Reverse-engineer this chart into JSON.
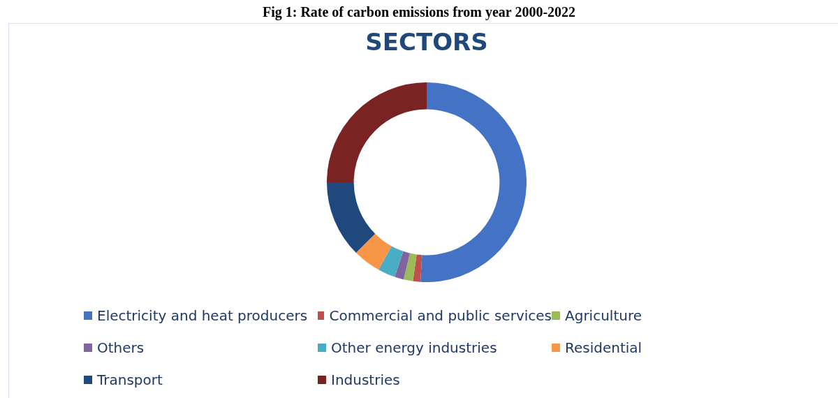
{
  "chart_data": {
    "type": "donut",
    "title": "SECTORS",
    "annotations": [
      "Fig 1: Rate of carbon emissions from year 2000-2022"
    ],
    "categories": [
      "Electricity and heat producers",
      "Commercial and public services",
      "Agriculture",
      "Others",
      "Other energy industries",
      "Residential",
      "Transport",
      "Industries"
    ],
    "values": [
      51,
      1.2,
      1.5,
      1.5,
      2.8,
      4.5,
      12.5,
      25
    ],
    "colors": [
      "#4472c4",
      "#c0504d",
      "#9bbb59",
      "#8064a2",
      "#4bacc6",
      "#f79646",
      "#1f497d",
      "#7b2323"
    ],
    "legend": "bottom"
  }
}
